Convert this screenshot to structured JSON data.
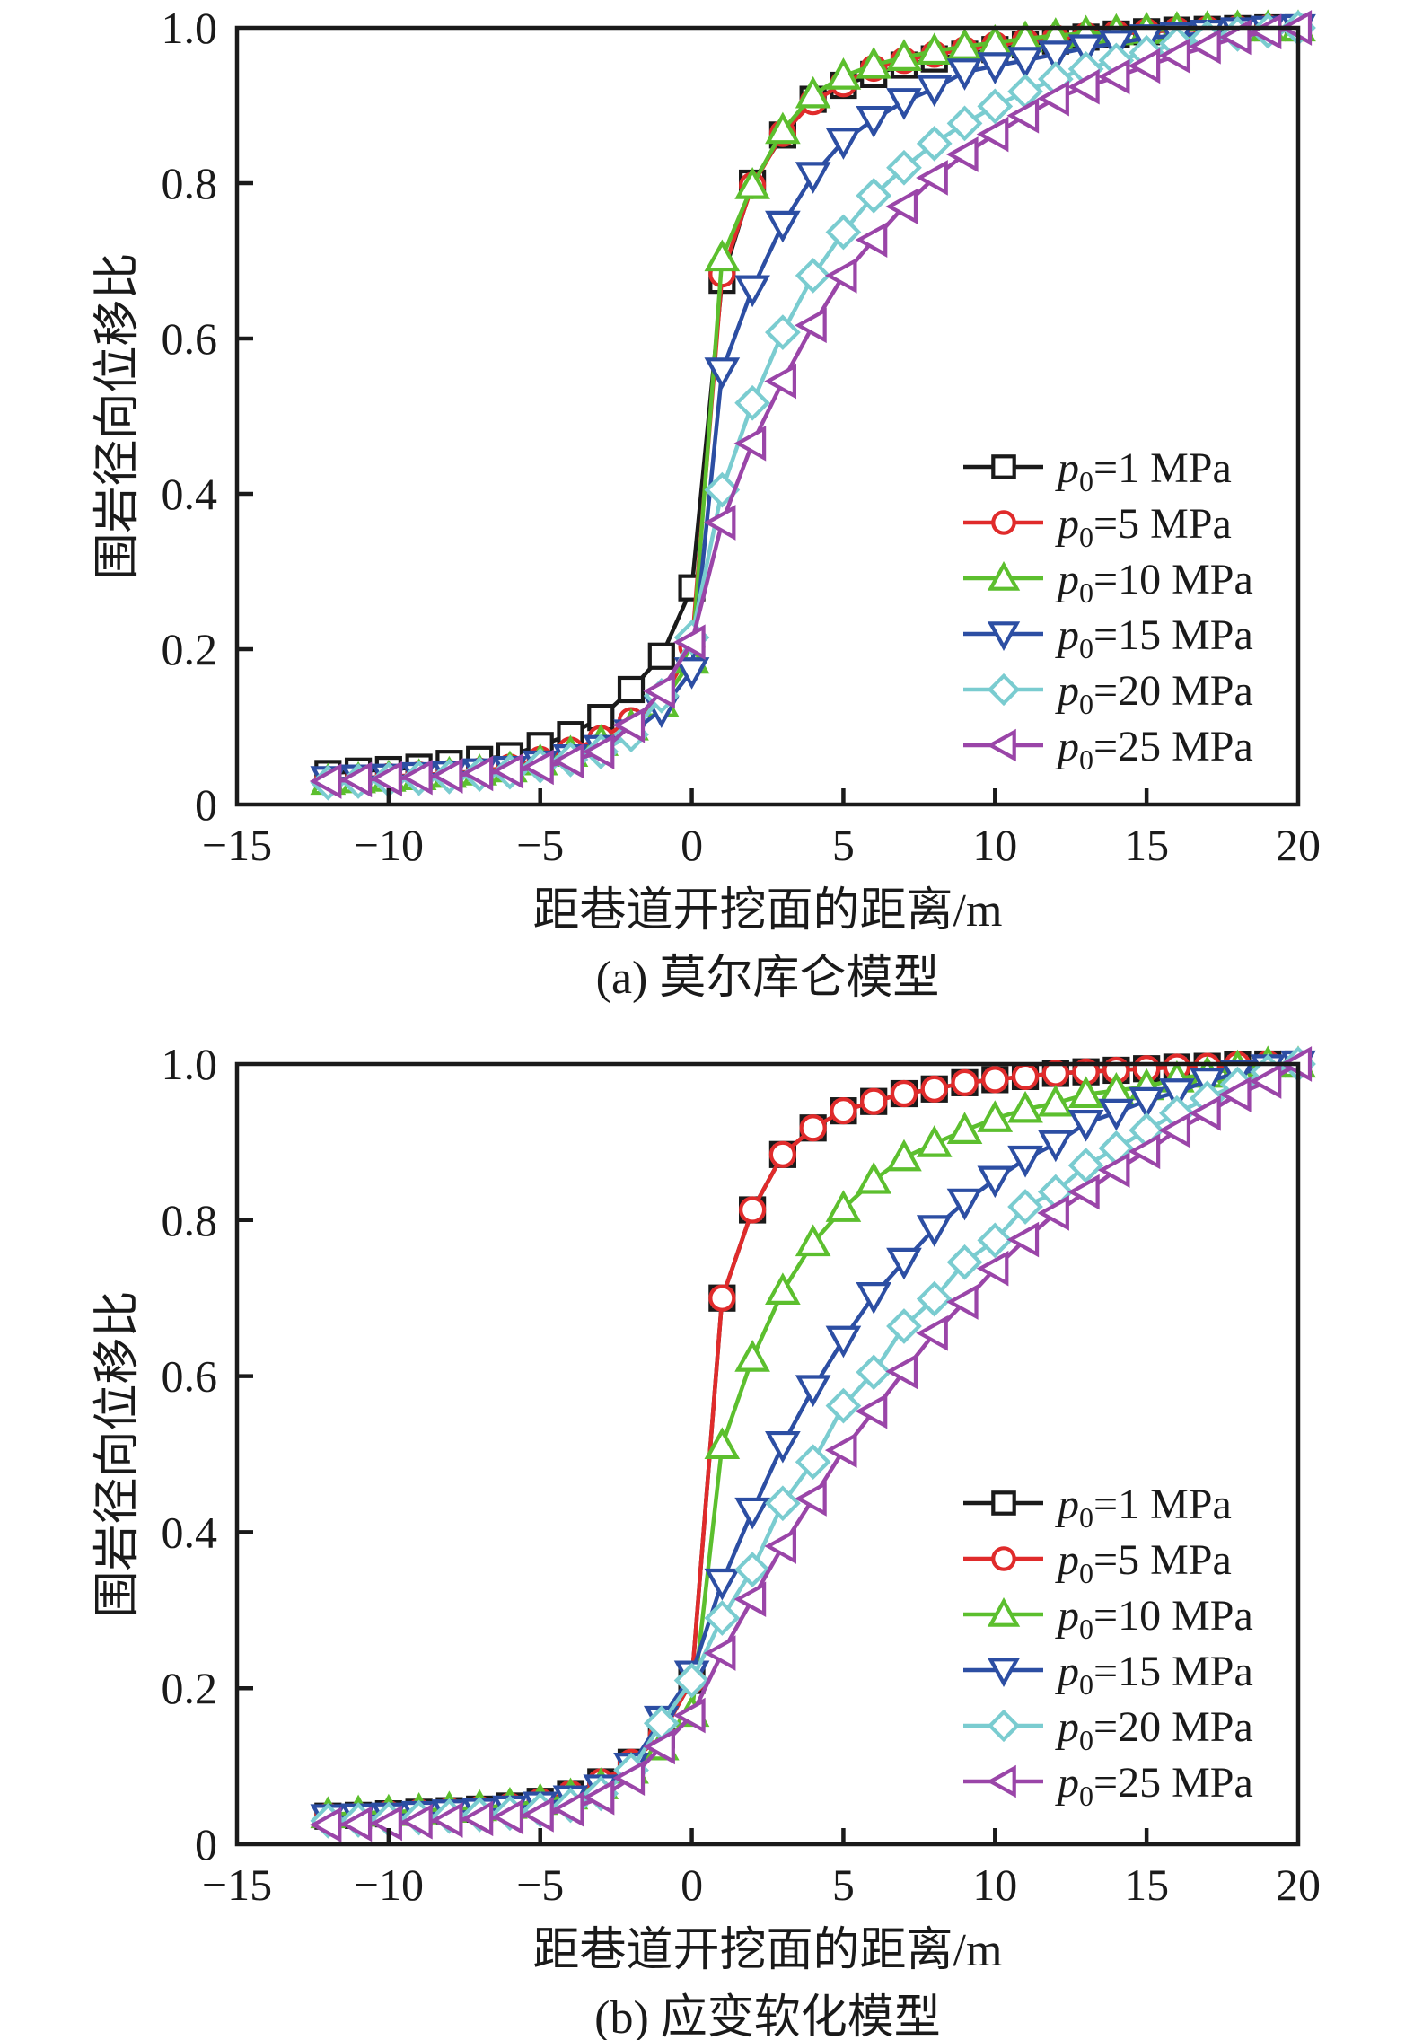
{
  "chart_data": [
    {
      "type": "line",
      "caption": "(a) 莫尔库仑模型",
      "title": "",
      "xlabel": "距巷道开挖面的距离/m",
      "ylabel": "围岩径向位移比",
      "xlim": [
        -15,
        20
      ],
      "ylim": [
        0,
        1.0
      ],
      "xticks": [
        -15,
        -10,
        -5,
        0,
        5,
        10,
        15,
        20
      ],
      "xtick_labels": [
        "−15",
        "−10",
        "−5",
        "0",
        "5",
        "10",
        "15",
        "20"
      ],
      "yticks": [
        0,
        0.2,
        0.4,
        0.6,
        0.8,
        1.0
      ],
      "ytick_labels": [
        "0",
        "0.2",
        "0.4",
        "0.6",
        "0.8",
        "1.0"
      ],
      "grid": false,
      "legend_position": "center-right",
      "x": [
        -12,
        -11,
        -10,
        -9,
        -8,
        -7,
        -6,
        -5,
        -4,
        -3,
        -2,
        -1,
        0,
        1,
        2,
        3,
        4,
        5,
        6,
        7,
        8,
        9,
        10,
        11,
        12,
        13,
        14,
        15,
        16,
        17,
        18,
        19,
        20
      ],
      "series": [
        {
          "name": "p0=1 MPa",
          "label_main": "p",
          "label_sub": "0",
          "label_rest": "=1 MPa",
          "color": "#1a1a1a",
          "marker": "square",
          "values": [
            0.04,
            0.043,
            0.045,
            0.048,
            0.053,
            0.058,
            0.063,
            0.076,
            0.09,
            0.112,
            0.148,
            0.191,
            0.279,
            0.675,
            0.8,
            0.862,
            0.908,
            0.926,
            0.94,
            0.952,
            0.96,
            0.966,
            0.972,
            0.978,
            0.983,
            0.988,
            0.992,
            0.995,
            0.997,
            0.998,
            0.999,
            1.0,
            1.0
          ]
        },
        {
          "name": "p0=5 MPa",
          "label_main": "p",
          "label_sub": "0",
          "label_rest": "=5 MPa",
          "color": "#e02b2b",
          "marker": "circle",
          "values": [
            0.032,
            0.034,
            0.036,
            0.038,
            0.04,
            0.043,
            0.048,
            0.058,
            0.07,
            0.085,
            0.108,
            0.134,
            0.203,
            0.683,
            0.797,
            0.864,
            0.905,
            0.928,
            0.948,
            0.958,
            0.966,
            0.972,
            0.978,
            0.983,
            0.987,
            0.99,
            0.993,
            0.995,
            0.997,
            0.998,
            0.999,
            1.0,
            1.0
          ]
        },
        {
          "name": "p0=10 MPa",
          "label_main": "p",
          "label_sub": "0",
          "label_rest": "=10 MPa",
          "color": "#5cbf2e",
          "marker": "triangle-up",
          "values": [
            0.03,
            0.032,
            0.034,
            0.036,
            0.039,
            0.042,
            0.046,
            0.055,
            0.066,
            0.08,
            0.1,
            0.13,
            0.186,
            0.704,
            0.797,
            0.868,
            0.914,
            0.938,
            0.952,
            0.962,
            0.97,
            0.976,
            0.981,
            0.986,
            0.99,
            0.993,
            0.995,
            0.997,
            0.998,
            0.999,
            1.0,
            1.0,
            1.0
          ]
        },
        {
          "name": "p0=15 MPa",
          "label_main": "p",
          "label_sub": "0",
          "label_rest": "=15 MPa",
          "color": "#2c4ea3",
          "marker": "triangle-down",
          "values": [
            0.032,
            0.034,
            0.035,
            0.037,
            0.039,
            0.042,
            0.045,
            0.052,
            0.06,
            0.072,
            0.092,
            0.122,
            0.172,
            0.558,
            0.664,
            0.747,
            0.81,
            0.854,
            0.882,
            0.905,
            0.922,
            0.943,
            0.951,
            0.958,
            0.966,
            0.974,
            0.98,
            0.987,
            0.99,
            0.993,
            0.996,
            0.998,
            1.0
          ]
        },
        {
          "name": "p0=20 MPa",
          "label_main": "p",
          "label_sub": "0",
          "label_rest": "=20 MPa",
          "color": "#7accd0",
          "marker": "diamond",
          "values": [
            0.028,
            0.03,
            0.032,
            0.034,
            0.036,
            0.039,
            0.042,
            0.05,
            0.058,
            0.068,
            0.09,
            0.14,
            0.215,
            0.405,
            0.517,
            0.608,
            0.681,
            0.737,
            0.784,
            0.82,
            0.851,
            0.877,
            0.899,
            0.918,
            0.934,
            0.947,
            0.958,
            0.968,
            0.98,
            0.987,
            0.992,
            0.996,
            1.0
          ]
        },
        {
          "name": "p0=25 MPa",
          "label_main": "p",
          "label_sub": "0",
          "label_rest": "=25 MPa",
          "color": "#9a45a8",
          "marker": "triangle-left",
          "values": [
            0.03,
            0.032,
            0.033,
            0.035,
            0.037,
            0.04,
            0.043,
            0.048,
            0.056,
            0.068,
            0.102,
            0.146,
            0.209,
            0.363,
            0.465,
            0.545,
            0.617,
            0.681,
            0.727,
            0.77,
            0.807,
            0.837,
            0.863,
            0.887,
            0.909,
            0.924,
            0.937,
            0.951,
            0.964,
            0.976,
            0.988,
            0.995,
            1.0
          ]
        }
      ]
    },
    {
      "type": "line",
      "caption": "(b) 应变软化模型",
      "title": "",
      "xlabel": "距巷道开挖面的距离/m",
      "ylabel": "围岩径向位移比",
      "xlim": [
        -15,
        20
      ],
      "ylim": [
        0,
        1.0
      ],
      "xticks": [
        -15,
        -10,
        -5,
        0,
        5,
        10,
        15,
        20
      ],
      "xtick_labels": [
        "−15",
        "−10",
        "−5",
        "0",
        "5",
        "10",
        "15",
        "20"
      ],
      "yticks": [
        0,
        0.2,
        0.4,
        0.6,
        0.8,
        1.0
      ],
      "ytick_labels": [
        "0",
        "0.2",
        "0.4",
        "0.6",
        "0.8",
        "1.0"
      ],
      "grid": false,
      "legend_position": "center-right",
      "x": [
        -12,
        -11,
        -10,
        -9,
        -8,
        -7,
        -6,
        -5,
        -4,
        -3,
        -2,
        -1,
        0,
        1,
        2,
        3,
        4,
        5,
        6,
        7,
        8,
        9,
        10,
        11,
        12,
        13,
        14,
        15,
        16,
        17,
        18,
        19,
        20
      ],
      "series": [
        {
          "name": "p0=1 MPa",
          "label_main": "p",
          "label_sub": "0",
          "label_rest": "=1 MPa",
          "color": "#1a1a1a",
          "marker": "square",
          "values": [
            0.036,
            0.037,
            0.039,
            0.041,
            0.043,
            0.045,
            0.049,
            0.055,
            0.065,
            0.08,
            0.105,
            0.14,
            0.21,
            0.7,
            0.813,
            0.884,
            0.918,
            0.94,
            0.952,
            0.962,
            0.968,
            0.976,
            0.98,
            0.984,
            0.988,
            0.99,
            0.992,
            0.994,
            0.996,
            0.997,
            0.999,
            1.0,
            1.0
          ]
        },
        {
          "name": "p0=5 MPa",
          "label_main": "p",
          "label_sub": "0",
          "label_rest": "=5 MPa",
          "color": "#e02b2b",
          "marker": "circle",
          "values": [
            0.036,
            0.037,
            0.039,
            0.041,
            0.043,
            0.045,
            0.049,
            0.055,
            0.065,
            0.08,
            0.105,
            0.14,
            0.21,
            0.7,
            0.813,
            0.884,
            0.918,
            0.94,
            0.952,
            0.962,
            0.968,
            0.976,
            0.98,
            0.984,
            0.988,
            0.99,
            0.992,
            0.994,
            0.996,
            0.997,
            0.999,
            1.0,
            1.0
          ]
        },
        {
          "name": "p0=10 MPa",
          "label_main": "p",
          "label_sub": "0",
          "label_rest": "=10 MPa",
          "color": "#5cbf2e",
          "marker": "triangle-up",
          "values": [
            0.038,
            0.04,
            0.041,
            0.043,
            0.045,
            0.047,
            0.05,
            0.055,
            0.062,
            0.075,
            0.095,
            0.125,
            0.168,
            0.511,
            0.623,
            0.709,
            0.771,
            0.815,
            0.851,
            0.88,
            0.898,
            0.915,
            0.93,
            0.942,
            0.95,
            0.961,
            0.966,
            0.971,
            0.981,
            0.987,
            0.995,
            1.0,
            1.0
          ]
        },
        {
          "name": "p0=15 MPa",
          "label_main": "p",
          "label_sub": "0",
          "label_rest": "=15 MPa",
          "color": "#2c4ea3",
          "marker": "triangle-down",
          "values": [
            0.034,
            0.035,
            0.036,
            0.038,
            0.04,
            0.042,
            0.045,
            0.05,
            0.058,
            0.072,
            0.1,
            0.16,
            0.218,
            0.336,
            0.427,
            0.512,
            0.584,
            0.647,
            0.703,
            0.747,
            0.789,
            0.823,
            0.852,
            0.878,
            0.898,
            0.924,
            0.938,
            0.953,
            0.964,
            0.978,
            0.988,
            0.995,
            1.0
          ]
        },
        {
          "name": "p0=20 MPa",
          "label_main": "p",
          "label_sub": "0",
          "label_rest": "=20 MPa",
          "color": "#7accd0",
          "marker": "diamond",
          "values": [
            0.03,
            0.031,
            0.032,
            0.034,
            0.036,
            0.038,
            0.04,
            0.044,
            0.05,
            0.065,
            0.095,
            0.155,
            0.21,
            0.29,
            0.352,
            0.437,
            0.49,
            0.562,
            0.605,
            0.664,
            0.699,
            0.746,
            0.774,
            0.817,
            0.836,
            0.87,
            0.892,
            0.915,
            0.937,
            0.956,
            0.974,
            0.99,
            1.0
          ]
        },
        {
          "name": "p0=25 MPa",
          "label_main": "p",
          "label_sub": "0",
          "label_rest": "=25 MPa",
          "color": "#9a45a8",
          "marker": "triangle-left",
          "values": [
            0.025,
            0.026,
            0.027,
            0.029,
            0.031,
            0.033,
            0.035,
            0.038,
            0.045,
            0.06,
            0.085,
            0.125,
            0.165,
            0.245,
            0.314,
            0.382,
            0.443,
            0.505,
            0.555,
            0.606,
            0.655,
            0.695,
            0.738,
            0.775,
            0.809,
            0.836,
            0.864,
            0.888,
            0.915,
            0.937,
            0.961,
            0.978,
            1.0
          ]
        }
      ]
    }
  ]
}
